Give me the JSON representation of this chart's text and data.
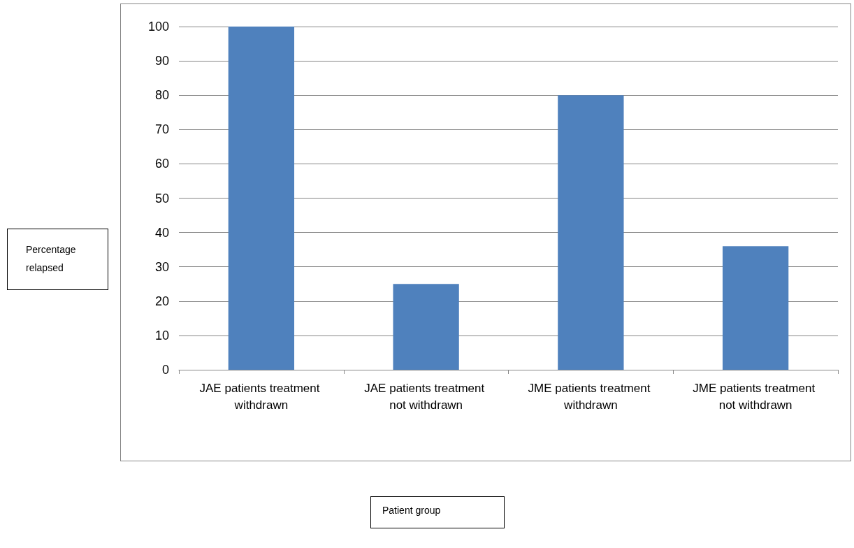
{
  "chart_data": {
    "type": "bar",
    "annotations": [
      "Percentage relapsed",
      "Patient group"
    ],
    "categories": [
      "JAE patients treatment withdrawn",
      "JAE patients treatment not withdrawn",
      "JME patients treatment withdrawn",
      "JME patients treatment not withdrawn"
    ],
    "values": [
      100,
      25,
      80,
      36
    ],
    "color": "#4f81bd",
    "ylim": [
      0,
      100
    ],
    "yticks": [
      0,
      10,
      20,
      30,
      40,
      50,
      60,
      70,
      80,
      90,
      100
    ],
    "grid": "y"
  }
}
